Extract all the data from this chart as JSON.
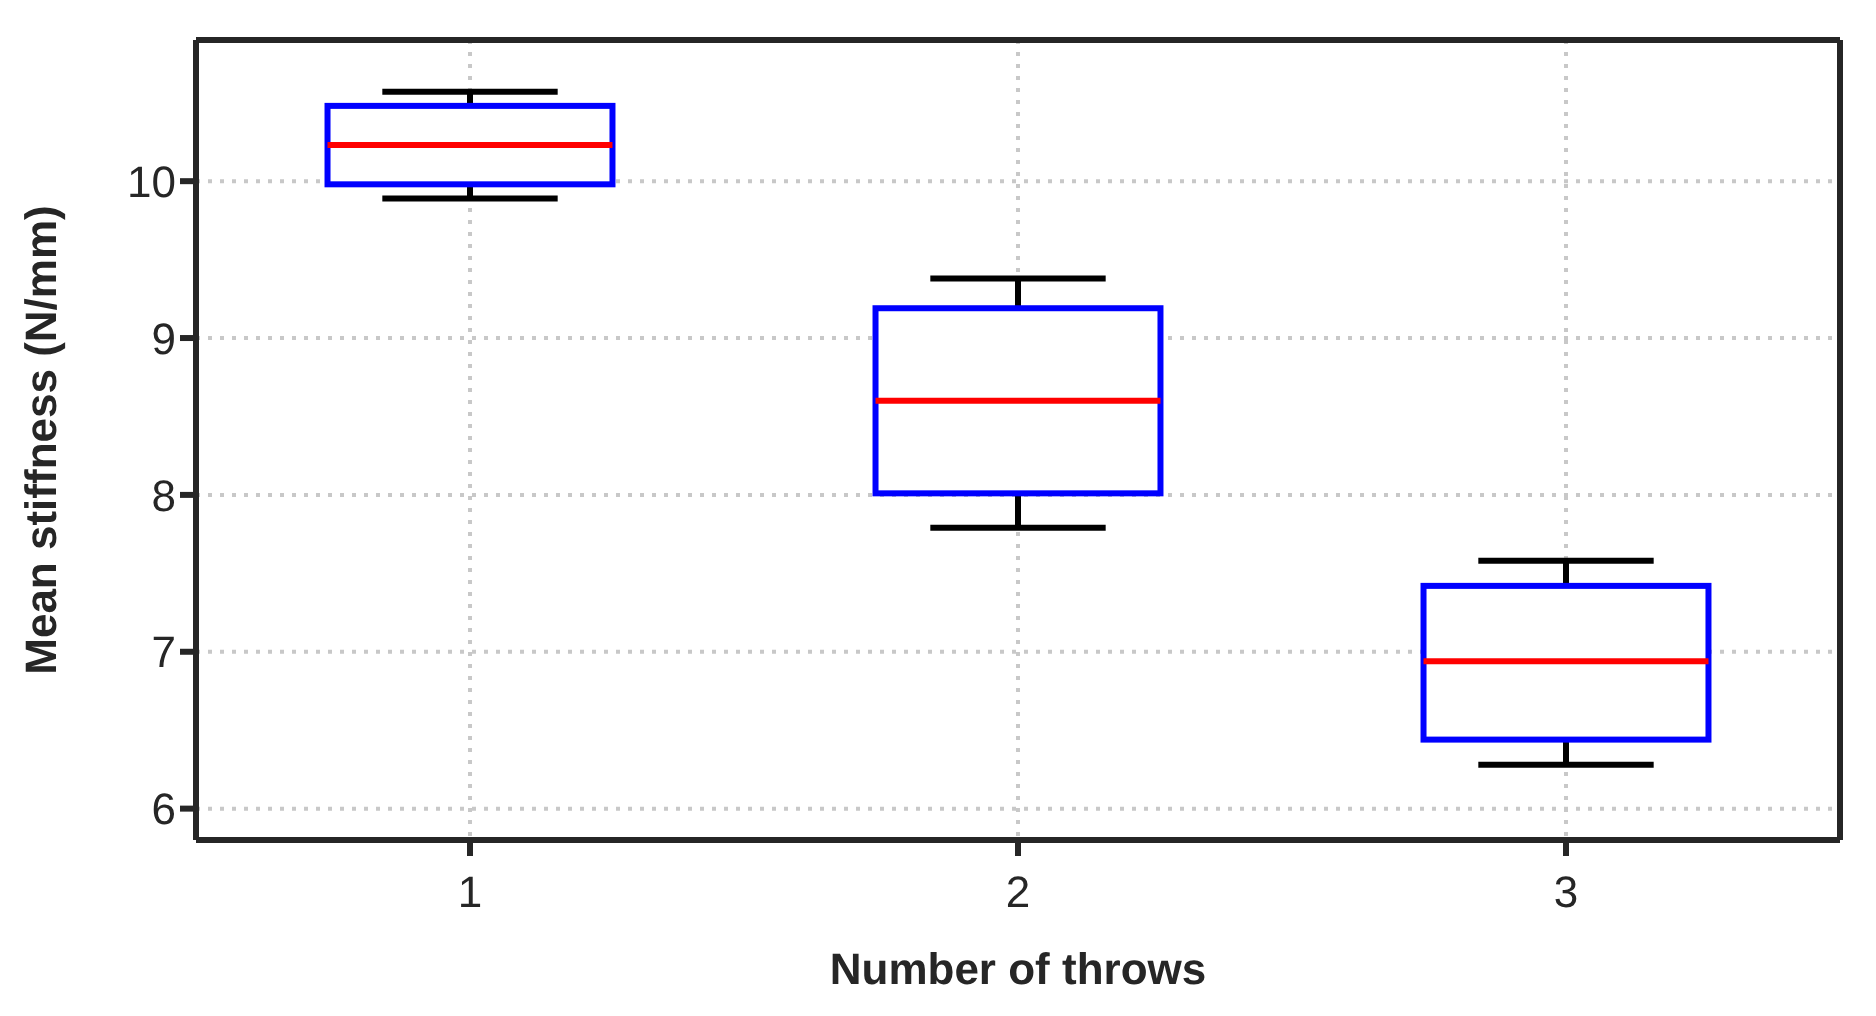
{
  "chart_data": {
    "type": "box",
    "xlabel": "Number of throws",
    "ylabel": "Mean stiffness (N/mm)",
    "categories": [
      "1",
      "2",
      "3"
    ],
    "series": [
      {
        "color": "#0000ff",
        "boxes": [
          {
            "low": 9.89,
            "q1": 9.98,
            "median": 10.23,
            "q3": 10.48,
            "high": 10.57
          },
          {
            "low": 7.79,
            "q1": 8.01,
            "median": 8.6,
            "q3": 9.19,
            "high": 9.38
          },
          {
            "low": 6.28,
            "q1": 6.44,
            "median": 6.94,
            "q3": 7.42,
            "high": 7.58
          }
        ]
      }
    ],
    "ylim": [
      5.8,
      10.9
    ],
    "yticks": [
      6,
      7,
      8,
      9,
      10
    ],
    "grid": true
  }
}
